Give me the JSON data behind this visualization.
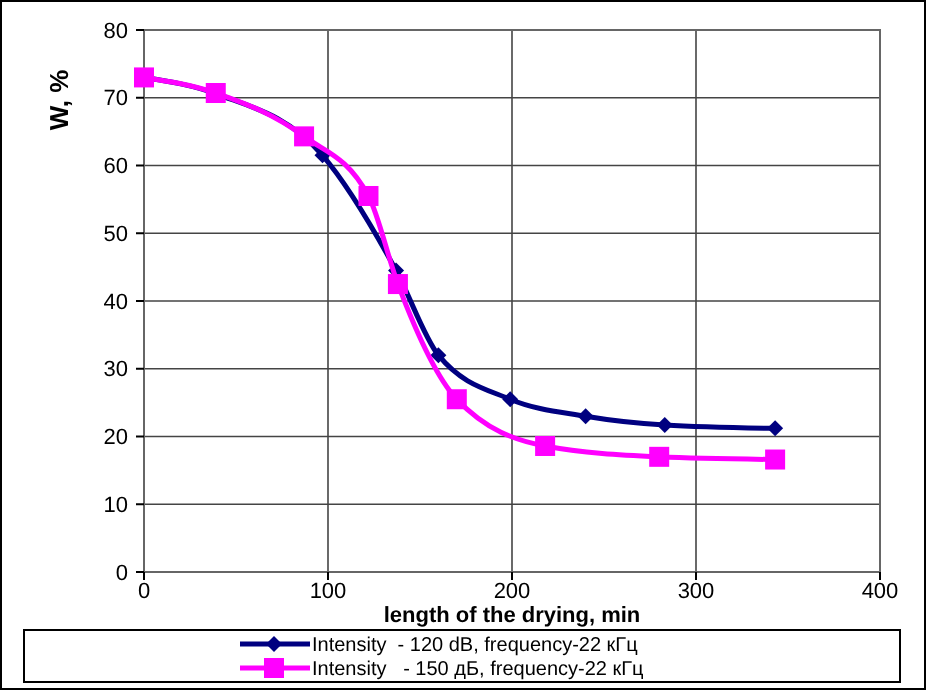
{
  "chart_data": {
    "type": "line",
    "xlabel": "length of the drying, min",
    "ylabel": "W, %",
    "xlim": [
      0,
      400
    ],
    "xticks": [
      0,
      100,
      200,
      300,
      400
    ],
    "ylim": [
      0,
      80
    ],
    "yticks": [
      0,
      10,
      20,
      30,
      40,
      50,
      60,
      70,
      80
    ],
    "grid": true,
    "legend": "bottom",
    "series": [
      {
        "name": "Intensity  - 120 dB, frequency-22 кГц",
        "color": "#000080",
        "marker": "diamond",
        "x": [
          0,
          40,
          97,
          137,
          160,
          199,
          240,
          283,
          343
        ],
        "values": [
          73,
          70.5,
          61.5,
          44.5,
          32,
          25.5,
          23,
          21.7,
          21.2
        ]
      },
      {
        "name": "Intensity   - 150 дБ, frequency-22 кГц",
        "color": "#ff00ff",
        "marker": "square",
        "x": [
          0,
          39,
          87,
          122,
          138,
          170,
          218,
          280,
          343
        ],
        "values": [
          73,
          70.7,
          64.3,
          55.5,
          42.5,
          25.5,
          18.6,
          17,
          16.6
        ]
      }
    ]
  }
}
